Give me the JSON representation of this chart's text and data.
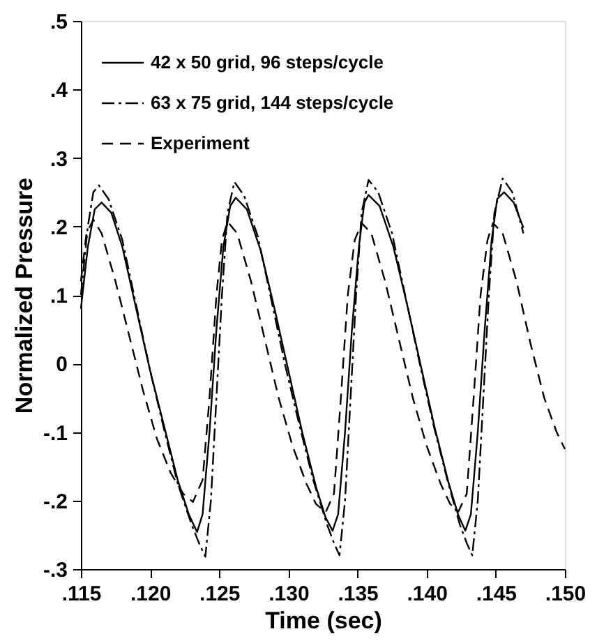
{
  "chart_data": {
    "type": "line",
    "xlabel": "Time (sec)",
    "ylabel": "Normalized Pressure",
    "xlim": [
      0.115,
      0.15
    ],
    "ylim": [
      -0.3,
      0.5
    ],
    "xticks": [
      {
        "value": 0.115,
        "label": ".115"
      },
      {
        "value": 0.12,
        "label": ".120"
      },
      {
        "value": 0.125,
        "label": ".125"
      },
      {
        "value": 0.13,
        "label": ".130"
      },
      {
        "value": 0.135,
        "label": ".135"
      },
      {
        "value": 0.14,
        "label": ".140"
      },
      {
        "value": 0.145,
        "label": ".145"
      },
      {
        "value": 0.15,
        "label": ".150"
      }
    ],
    "yticks": [
      {
        "value": -0.3,
        "label": "-.3"
      },
      {
        "value": -0.2,
        "label": "-.2"
      },
      {
        "value": -0.1,
        "label": "-.1"
      },
      0,
      {
        "value": 0.1,
        "label": ".1"
      },
      {
        "value": 0.2,
        "label": ".2"
      },
      {
        "value": 0.3,
        "label": ".3"
      },
      {
        "value": 0.4,
        "label": ".4"
      },
      {
        "value": 0.5,
        "label": ".5"
      }
    ],
    "legend": "top left",
    "grid": false,
    "marker": "none",
    "series": [
      {
        "name": "42 x 50 grid, 96 steps/cycle",
        "color": "#000000",
        "line_style": "solid",
        "x": [
          0.115,
          0.1155,
          0.116,
          0.1165,
          0.1172,
          0.118,
          0.119,
          0.12,
          0.121,
          0.122,
          0.1228,
          0.1234,
          0.1238,
          0.1243,
          0.1248,
          0.1253,
          0.1258,
          0.1262,
          0.127,
          0.128,
          0.129,
          0.13,
          0.131,
          0.132,
          0.1327,
          0.1332,
          0.1336,
          0.1341,
          0.1346,
          0.1351,
          0.1355,
          0.1358,
          0.1366,
          0.1376,
          0.1386,
          0.1396,
          0.1406,
          0.1416,
          0.1423,
          0.1428,
          0.1432,
          0.1437,
          0.1442,
          0.1447,
          0.1451,
          0.1456,
          0.1463,
          0.147
        ],
        "values": [
          0.08,
          0.17,
          0.225,
          0.235,
          0.22,
          0.17,
          0.08,
          -0.01,
          -0.09,
          -0.17,
          -0.22,
          -0.246,
          -0.22,
          -0.1,
          0.05,
          0.17,
          0.23,
          0.242,
          0.225,
          0.165,
          0.08,
          -0.01,
          -0.1,
          -0.18,
          -0.225,
          -0.244,
          -0.22,
          -0.1,
          0.05,
          0.17,
          0.235,
          0.246,
          0.23,
          0.17,
          0.085,
          -0.005,
          -0.095,
          -0.175,
          -0.222,
          -0.244,
          -0.22,
          -0.1,
          0.05,
          0.18,
          0.24,
          0.25,
          0.235,
          0.198
        ]
      },
      {
        "name": "63 x 75 grid, 144 steps/cycle",
        "color": "#000000",
        "line_style": "dashdot",
        "x": [
          0.115,
          0.1155,
          0.1159,
          0.1163,
          0.117,
          0.118,
          0.119,
          0.12,
          0.121,
          0.122,
          0.123,
          0.1236,
          0.124,
          0.1244,
          0.1248,
          0.1252,
          0.1256,
          0.1261,
          0.1268,
          0.1278,
          0.1288,
          0.1298,
          0.1308,
          0.1318,
          0.1328,
          0.1333,
          0.1337,
          0.1341,
          0.1345,
          0.1349,
          0.1353,
          0.1358,
          0.1365,
          0.1375,
          0.1385,
          0.1395,
          0.1405,
          0.1415,
          0.1424,
          0.1429,
          0.1433,
          0.1437,
          0.1441,
          0.1445,
          0.1449,
          0.1455,
          0.1462,
          0.147
        ],
        "values": [
          0.1,
          0.2,
          0.25,
          0.26,
          0.24,
          0.18,
          0.085,
          -0.01,
          -0.095,
          -0.175,
          -0.235,
          -0.265,
          -0.282,
          -0.2,
          -0.05,
          0.1,
          0.22,
          0.265,
          0.245,
          0.185,
          0.09,
          -0.005,
          -0.09,
          -0.17,
          -0.235,
          -0.262,
          -0.28,
          -0.2,
          -0.05,
          0.1,
          0.22,
          0.268,
          0.25,
          0.19,
          0.095,
          0,
          -0.09,
          -0.17,
          -0.235,
          -0.262,
          -0.28,
          -0.2,
          -0.05,
          0.1,
          0.22,
          0.27,
          0.25,
          0.19
        ]
      },
      {
        "name": "Experiment",
        "color": "#000000",
        "line_style": "dashed",
        "x": [
          0.115,
          0.1154,
          0.1159,
          0.1165,
          0.1175,
          0.1185,
          0.1195,
          0.1205,
          0.1215,
          0.1224,
          0.1231,
          0.1238,
          0.1243,
          0.1248,
          0.1252,
          0.1256,
          0.1263,
          0.1273,
          0.1283,
          0.1293,
          0.1303,
          0.1313,
          0.132,
          0.1327,
          0.1333,
          0.1338,
          0.1343,
          0.1348,
          0.1353,
          0.136,
          0.137,
          0.138,
          0.139,
          0.14,
          0.141,
          0.1417,
          0.1423,
          0.1429,
          0.1434,
          0.1439,
          0.1444,
          0.1448,
          0.1455,
          0.1465,
          0.1475,
          0.1485,
          0.1494,
          0.15
        ],
        "values": [
          0.12,
          0.19,
          0.21,
          0.19,
          0.12,
          0.04,
          -0.04,
          -0.11,
          -0.16,
          -0.19,
          -0.202,
          -0.17,
          -0.05,
          0.1,
          0.18,
          0.207,
          0.19,
          0.12,
          0.035,
          -0.05,
          -0.12,
          -0.175,
          -0.205,
          -0.217,
          -0.19,
          -0.05,
          0.1,
          0.18,
          0.205,
          0.19,
          0.12,
          0.035,
          -0.05,
          -0.12,
          -0.175,
          -0.205,
          -0.216,
          -0.19,
          -0.05,
          0.1,
          0.18,
          0.205,
          0.19,
          0.12,
          0.03,
          -0.05,
          -0.1,
          -0.125
        ]
      }
    ]
  }
}
